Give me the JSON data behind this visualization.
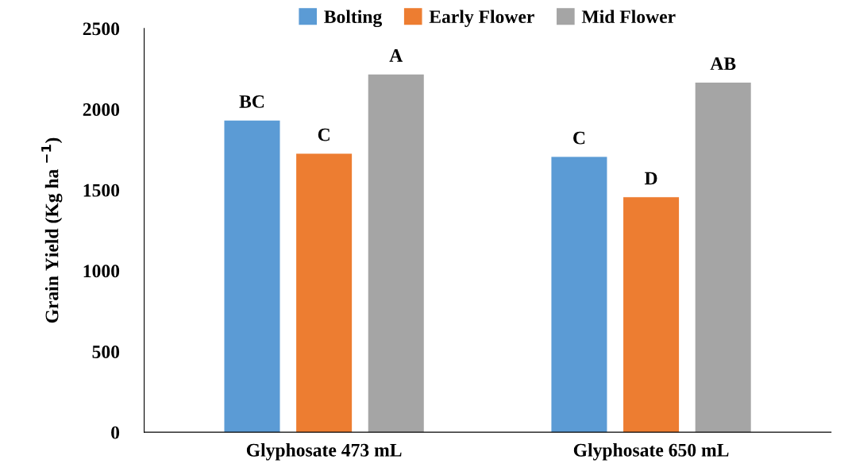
{
  "chart_data": {
    "type": "bar",
    "categories": [
      "Glyphosate 473 mL",
      "Glyphosate 650 mL"
    ],
    "series": [
      {
        "name": "Bolting",
        "color": "#5b9bd5",
        "values": [
          1930,
          1705
        ],
        "value_labels": [
          "BC",
          "C"
        ]
      },
      {
        "name": "Early Flower",
        "color": "#ed7d31",
        "values": [
          1725,
          1455
        ],
        "value_labels": [
          "C",
          "D"
        ]
      },
      {
        "name": "Mid Flower",
        "color": "#a5a5a5",
        "values": [
          2215,
          2165
        ],
        "value_labels": [
          "A",
          "AB"
        ]
      }
    ],
    "ylabel": "Grain Yield (Kg ha $^{−1}$)",
    "ylim": [
      0,
      2500
    ],
    "yticks": [
      0,
      500,
      1000,
      1500,
      2000,
      2500
    ],
    "grid": false,
    "legend": "top"
  }
}
